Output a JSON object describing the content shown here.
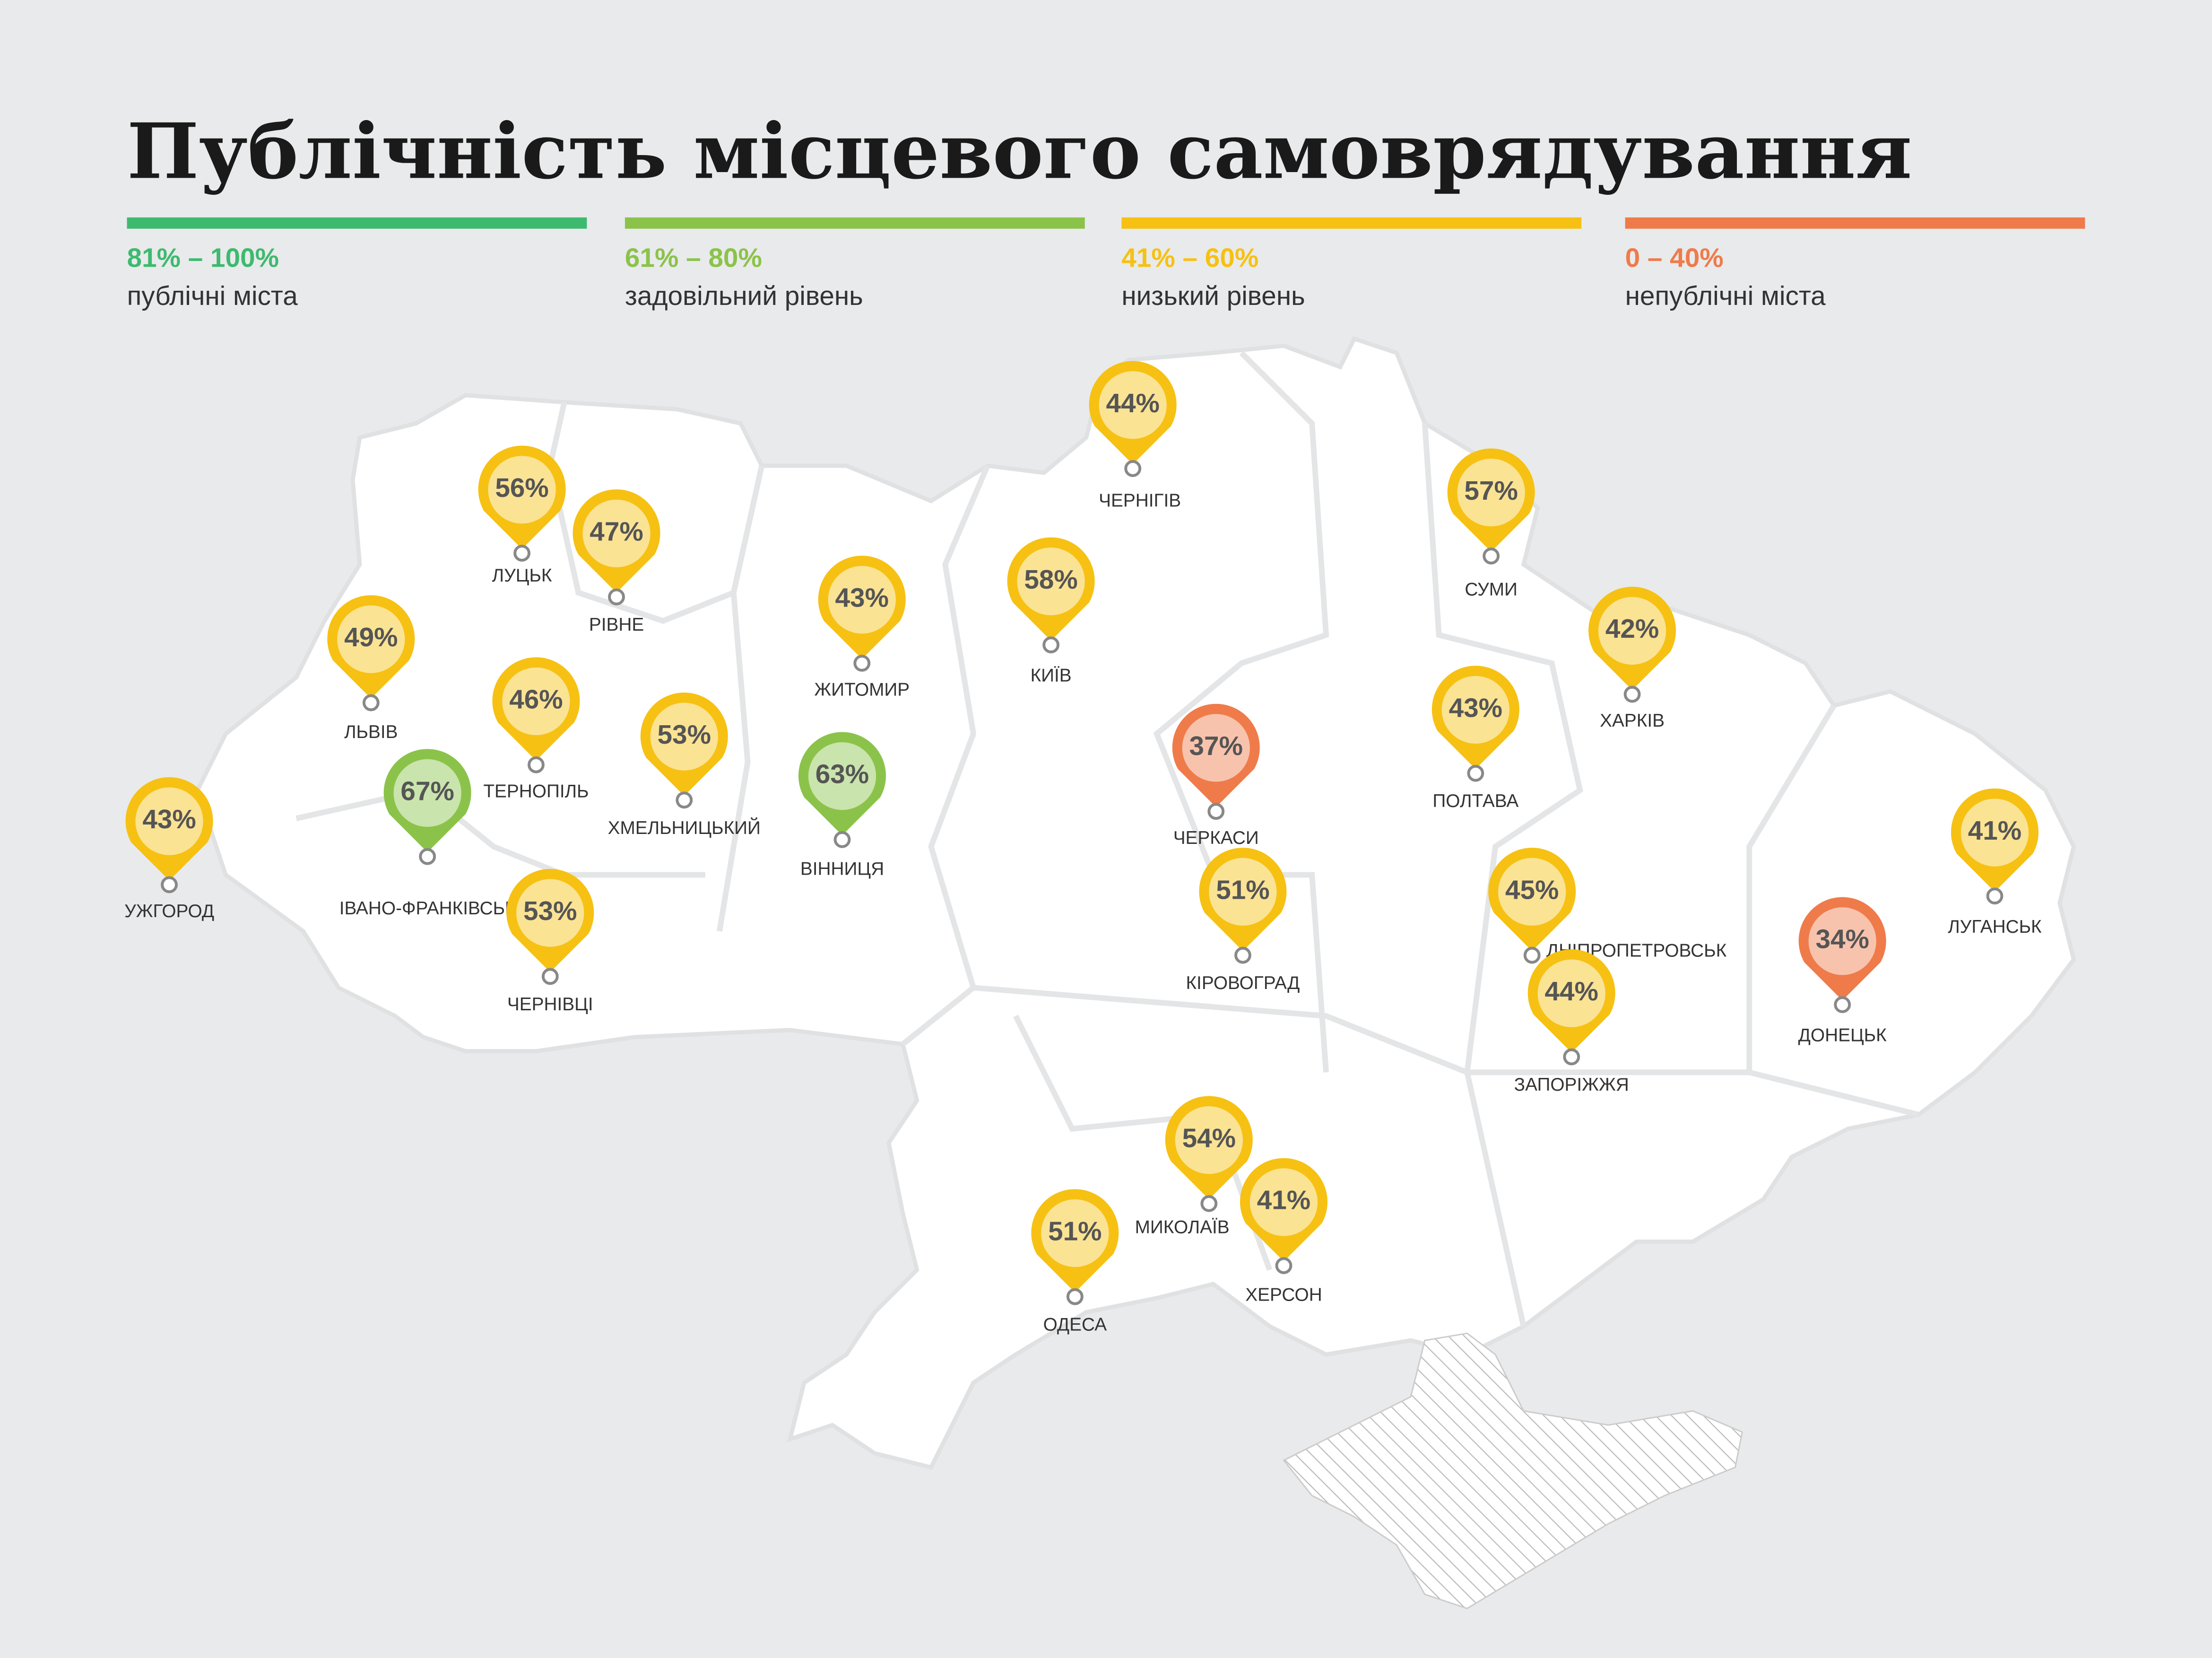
{
  "title": "Публічність місцевого самоврядування",
  "legend": [
    {
      "range": "81% – 100%",
      "label": "публічні міста",
      "color": "#3dba6f"
    },
    {
      "range": "61% – 80%",
      "label": "задовільний рівень",
      "color": "#8bc34a"
    },
    {
      "range": "41% – 60%",
      "label": "низький рівень",
      "color": "#f6c112"
    },
    {
      "range": "0 – 40%",
      "label": "непублічні міста",
      "color": "#ef7b4a"
    }
  ],
  "cities": [
    {
      "name": "ЛУЦЬК",
      "value": 56,
      "value_label": "56%",
      "color": "#f6c112"
    },
    {
      "name": "РІВНЕ",
      "value": 47,
      "value_label": "47%",
      "color": "#f6c112"
    },
    {
      "name": "ЛЬВІВ",
      "value": 49,
      "value_label": "49%",
      "color": "#f6c112"
    },
    {
      "name": "ТЕРНОПІЛЬ",
      "value": 46,
      "value_label": "46%",
      "color": "#f6c112"
    },
    {
      "name": "УЖГОРОД",
      "value": 43,
      "value_label": "43%",
      "color": "#f6c112"
    },
    {
      "name": "ІВАНО-ФРАНКІВСЬК",
      "value": 67,
      "value_label": "67%",
      "color": "#8bc34a"
    },
    {
      "name": "ЧЕРНІВЦІ",
      "value": 53,
      "value_label": "53%",
      "color": "#f6c112"
    },
    {
      "name": "ХМЕЛЬНИЦЬКИЙ",
      "value": 53,
      "value_label": "53%",
      "color": "#f6c112"
    },
    {
      "name": "ЖИТОМИР",
      "value": 43,
      "value_label": "43%",
      "color": "#f6c112"
    },
    {
      "name": "ВІННИЦЯ",
      "value": 63,
      "value_label": "63%",
      "color": "#8bc34a"
    },
    {
      "name": "КИЇВ",
      "value": 58,
      "value_label": "58%",
      "color": "#f6c112"
    },
    {
      "name": "ЧЕРНІГІВ",
      "value": 44,
      "value_label": "44%",
      "color": "#f6c112"
    },
    {
      "name": "ЧЕРКАСИ",
      "value": 37,
      "value_label": "37%",
      "color": "#ef7b4a"
    },
    {
      "name": "КІРОВОГРАД",
      "value": 51,
      "value_label": "51%",
      "color": "#f6c112"
    },
    {
      "name": "СУМИ",
      "value": 57,
      "value_label": "57%",
      "color": "#f6c112"
    },
    {
      "name": "ПОЛТАВА",
      "value": 43,
      "value_label": "43%",
      "color": "#f6c112"
    },
    {
      "name": "ХАРКІВ",
      "value": 42,
      "value_label": "42%",
      "color": "#f6c112"
    },
    {
      "name": "ДНІПРОПЕТРОВСЬК",
      "value": 45,
      "value_label": "45%",
      "color": "#f6c112"
    },
    {
      "name": "ЗАПОРІЖЖЯ",
      "value": 44,
      "value_label": "44%",
      "color": "#f6c112"
    },
    {
      "name": "ДОНЕЦЬК",
      "value": 34,
      "value_label": "34%",
      "color": "#ef7b4a"
    },
    {
      "name": "ЛУГАНСЬК",
      "value": 41,
      "value_label": "41%",
      "color": "#f6c112"
    },
    {
      "name": "МИКОЛАЇВ",
      "value": 54,
      "value_label": "54%",
      "color": "#f6c112"
    },
    {
      "name": "ХЕРСОН",
      "value": 41,
      "value_label": "41%",
      "color": "#f6c112"
    },
    {
      "name": "ОДЕСА",
      "value": 51,
      "value_label": "51%",
      "color": "#f6c112"
    }
  ]
}
